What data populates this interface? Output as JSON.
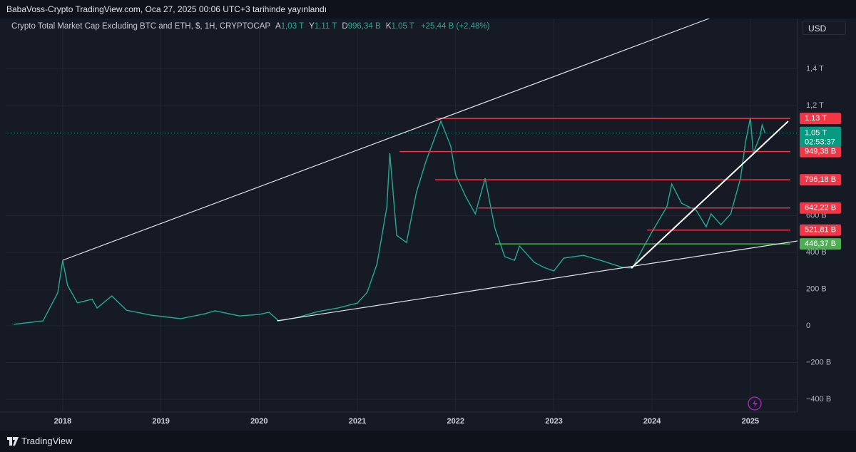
{
  "header": {
    "published": "BabaVoss-Crypto TradingView.com, Oca 27, 2025 00:06 UTC+3 tarihinde yayınlandı",
    "symbol": "Crypto Total Market Cap Excluding BTC and ETH, $, 1H, CRYPTOCAP",
    "open_key": "A",
    "open": "1,03 T",
    "high_key": "Y",
    "high": "1,11 T",
    "low_key": "D",
    "low": "996,34 B",
    "close_key": "K",
    "close": "1,05 T",
    "change": "+25,44 B (+2,48%)",
    "currency": "USD"
  },
  "footer": {
    "brand": "TradingView"
  },
  "chart_data": {
    "type": "line",
    "x": [
      2017.5,
      2017.8,
      2017.95,
      2018.0,
      2018.05,
      2018.15,
      2018.3,
      2018.35,
      2018.5,
      2018.65,
      2018.9,
      2019.2,
      2019.45,
      2019.55,
      2019.8,
      2020.0,
      2020.1,
      2020.2,
      2020.4,
      2020.6,
      2020.8,
      2021.0,
      2021.1,
      2021.2,
      2021.3,
      2021.33,
      2021.4,
      2021.5,
      2021.6,
      2021.7,
      2021.85,
      2021.95,
      2022.0,
      2022.1,
      2022.2,
      2022.3,
      2022.4,
      2022.5,
      2022.6,
      2022.65,
      2022.8,
      2022.9,
      2023.0,
      2023.1,
      2023.3,
      2023.5,
      2023.7,
      2023.8,
      2023.9,
      2024.0,
      2024.15,
      2024.2,
      2024.3,
      2024.45,
      2024.55,
      2024.6,
      2024.7,
      2024.8,
      2024.9,
      2024.95,
      2025.0,
      2025.03,
      2025.1,
      2025.12,
      2025.15
    ],
    "series": [
      {
        "name": "CRYPTOCAP",
        "color": "#22ab94",
        "values": [
          8,
          27,
          180,
          357,
          220,
          125,
          145,
          97,
          163,
          85,
          58,
          39,
          66,
          82,
          54,
          62,
          74,
          27,
          47,
          78,
          97,
          124,
          183,
          338,
          649,
          940,
          493,
          454,
          726,
          900,
          1115,
          979,
          823,
          707,
          610,
          804,
          532,
          377,
          357,
          435,
          346,
          318,
          299,
          369,
          384,
          353,
          318,
          315,
          416,
          513,
          649,
          773,
          668,
          629,
          540,
          610,
          551,
          610,
          804,
          998,
          1134,
          940,
          1037,
          1095,
          1050
        ]
      }
    ],
    "xlim": [
      2017.42,
      2025.48
    ],
    "xticks": [
      2018,
      2019,
      2020,
      2021,
      2022,
      2023,
      2024,
      2025
    ],
    "ylim": [
      -470,
      1690
    ],
    "yticks": [
      {
        "value": -400,
        "label": "−400 B"
      },
      {
        "value": -200,
        "label": "−200 B"
      },
      0,
      {
        "value": 200,
        "label": "200 B"
      },
      {
        "value": 400,
        "label": "400 B"
      },
      {
        "value": 600,
        "label": "600 B"
      },
      {
        "value": 1200,
        "label": "1,2 T"
      },
      {
        "value": 1400,
        "label": "1,4 T"
      }
    ],
    "grid": true,
    "levels": [
      {
        "value": 1130,
        "label": "1,13 T",
        "color": "#f23645",
        "start": 2021.8
      },
      {
        "value": 949.38,
        "label": "949,38 B",
        "color": "#f23645",
        "start": 2021.43
      },
      {
        "value": 796.18,
        "label": "796,18 B",
        "color": "#f23645",
        "start": 2021.79
      },
      {
        "value": 642.22,
        "label": "642,22 B",
        "color": "#f23645",
        "start": 2022.23
      },
      {
        "value": 521.81,
        "label": "521,81 B",
        "color": "#f23645",
        "start": 2023.95
      },
      {
        "value": 446.37,
        "label": "446,37 B",
        "color": "#4caf50",
        "start": 2022.4
      }
    ],
    "price": {
      "value": 1050,
      "label": "1,05 T",
      "countdown": "02:53:37",
      "color": "#089981"
    }
  }
}
